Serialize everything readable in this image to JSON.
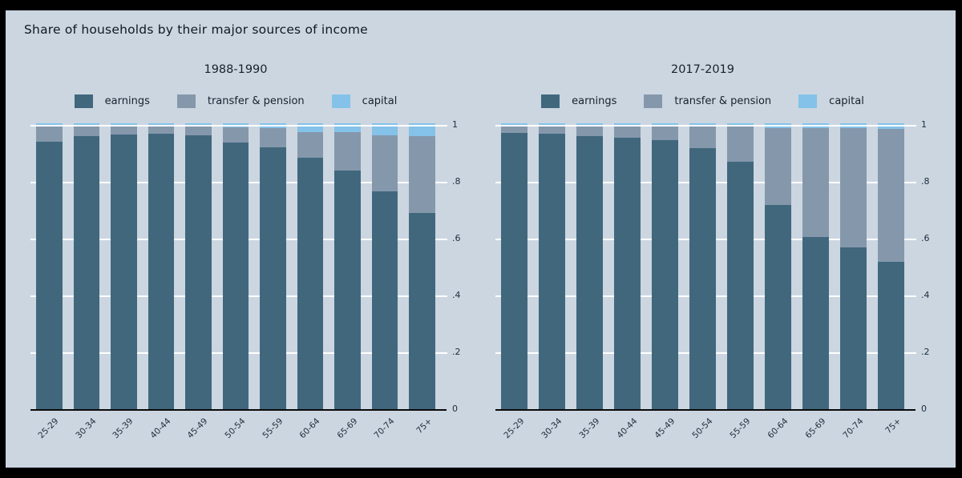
{
  "title": "Share of households by their major sources of income",
  "colors": {
    "frame": "#000000",
    "background": "#cbd6e1",
    "earnings": "#41677d",
    "transfer": "#8598ab",
    "capital": "#84c2e9",
    "gridline": "#ffffff",
    "axis": "#0a0a0a",
    "text": "#18222c"
  },
  "legend": {
    "items": [
      {
        "label": "earnings",
        "color_key": "earnings"
      },
      {
        "label": "transfer & pension",
        "color_key": "transfer"
      },
      {
        "label": "capital",
        "color_key": "capital"
      }
    ]
  },
  "chart_data": [
    {
      "type": "bar",
      "stacked": true,
      "title": "1988-1990",
      "categories": [
        "25-29",
        "30-34",
        "35-39",
        "40-44",
        "45-49",
        "50-54",
        "55-59",
        "60-64",
        "65-69",
        "70-74",
        "75+"
      ],
      "series": [
        {
          "name": "earnings",
          "color_key": "earnings",
          "values": [
            0.935,
            0.955,
            0.96,
            0.963,
            0.958,
            0.934,
            0.915,
            0.88,
            0.836,
            0.763,
            0.688
          ]
        },
        {
          "name": "transfer & pension",
          "color_key": "transfer",
          "values": [
            0.06,
            0.04,
            0.035,
            0.031,
            0.035,
            0.051,
            0.067,
            0.09,
            0.133,
            0.195,
            0.267
          ]
        },
        {
          "name": "capital",
          "color_key": "capital",
          "values": [
            0.005,
            0.005,
            0.005,
            0.006,
            0.007,
            0.015,
            0.018,
            0.03,
            0.031,
            0.042,
            0.045
          ]
        }
      ],
      "xlabel": "",
      "ylabel": "",
      "ylim": [
        0,
        1
      ],
      "yticks": [
        {
          "v": 0.0,
          "label": "0"
        },
        {
          "v": 0.2,
          "label": ".2"
        },
        {
          "v": 0.4,
          "label": ".4"
        },
        {
          "v": 0.6,
          "label": ".6"
        },
        {
          "v": 0.8,
          "label": ".8"
        },
        {
          "v": 1.0,
          "label": "1"
        }
      ],
      "grid": true,
      "legend_position": "top"
    },
    {
      "type": "bar",
      "stacked": true,
      "title": "2017-2019",
      "categories": [
        "25-29",
        "30-34",
        "35-39",
        "40-44",
        "45-49",
        "50-54",
        "55-59",
        "60-64",
        "65-69",
        "70-74",
        "75+"
      ],
      "series": [
        {
          "name": "earnings",
          "color_key": "earnings",
          "values": [
            0.966,
            0.964,
            0.956,
            0.949,
            0.941,
            0.913,
            0.866,
            0.716,
            0.604,
            0.567,
            0.518
          ]
        },
        {
          "name": "transfer & pension",
          "color_key": "transfer",
          "values": [
            0.029,
            0.031,
            0.039,
            0.045,
            0.052,
            0.078,
            0.122,
            0.268,
            0.38,
            0.416,
            0.464
          ]
        },
        {
          "name": "capital",
          "color_key": "capital",
          "values": [
            0.005,
            0.005,
            0.005,
            0.006,
            0.007,
            0.009,
            0.012,
            0.016,
            0.016,
            0.017,
            0.018
          ]
        }
      ],
      "xlabel": "",
      "ylabel": "",
      "ylim": [
        0,
        1
      ],
      "yticks": [
        {
          "v": 0.0,
          "label": "0"
        },
        {
          "v": 0.2,
          "label": ".2"
        },
        {
          "v": 0.4,
          "label": ".4"
        },
        {
          "v": 0.6,
          "label": ".6"
        },
        {
          "v": 0.8,
          "label": ".8"
        },
        {
          "v": 1.0,
          "label": "1"
        }
      ],
      "grid": true,
      "legend_position": "top"
    }
  ]
}
